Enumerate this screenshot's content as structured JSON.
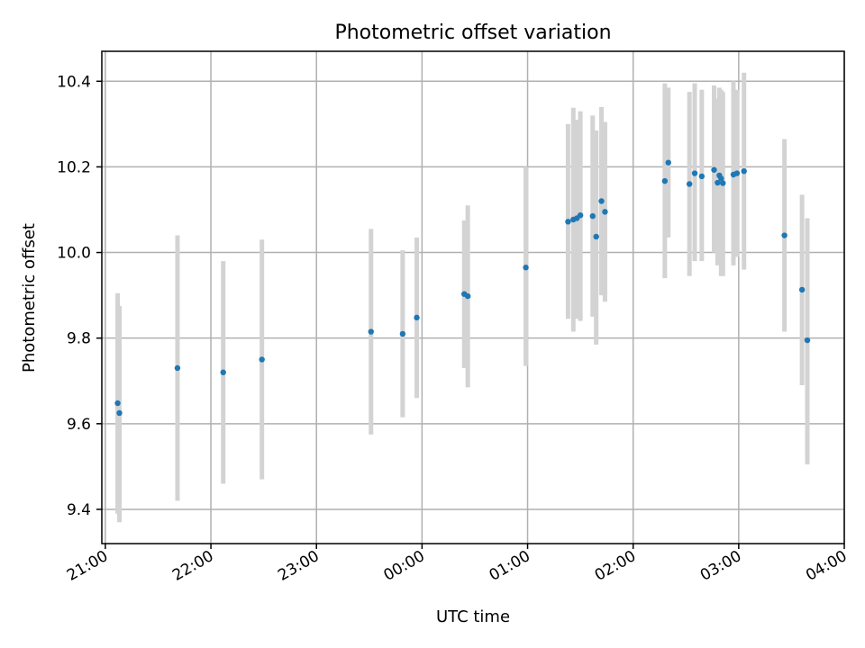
{
  "chart_data": {
    "type": "scatter",
    "title": "Photometric offset variation",
    "xlabel": "UTC time",
    "ylabel": "Photometric offset",
    "x_unit": "UTC time of day (HH:MM), axis spans 21:00 to 04:00 of the following day",
    "xlim": [
      "20:58",
      "04:00"
    ],
    "ylim": [
      9.32,
      10.47
    ],
    "x_ticks": [
      "21:00",
      "22:00",
      "23:00",
      "00:00",
      "01:00",
      "02:00",
      "03:00",
      "04:00"
    ],
    "y_ticks": [
      9.4,
      9.6,
      9.8,
      10.0,
      10.2,
      10.4
    ],
    "y_tick_labels": [
      "9.4",
      "9.6",
      "9.8",
      "10.0",
      "10.2",
      "10.4"
    ],
    "grid": true,
    "marker_color": "#1f77b4",
    "errorbar_color": "#d3d3d3",
    "points": [
      {
        "t": "21:07",
        "y": 9.648,
        "lo": 9.39,
        "hi": 9.905
      },
      {
        "t": "21:08",
        "y": 9.625,
        "lo": 9.37,
        "hi": 9.875
      },
      {
        "t": "21:41",
        "y": 9.73,
        "lo": 9.42,
        "hi": 10.04
      },
      {
        "t": "22:07",
        "y": 9.72,
        "lo": 9.46,
        "hi": 9.98
      },
      {
        "t": "22:29",
        "y": 9.75,
        "lo": 9.47,
        "hi": 10.03
      },
      {
        "t": "23:31",
        "y": 9.815,
        "lo": 9.575,
        "hi": 10.055
      },
      {
        "t": "23:49",
        "y": 9.81,
        "lo": 9.615,
        "hi": 10.005
      },
      {
        "t": "23:57",
        "y": 9.848,
        "lo": 9.66,
        "hi": 10.035
      },
      {
        "t": "00:24",
        "y": 9.903,
        "lo": 9.73,
        "hi": 10.075
      },
      {
        "t": "00:26",
        "y": 9.898,
        "lo": 9.685,
        "hi": 10.11
      },
      {
        "t": "00:59",
        "y": 9.965,
        "lo": 9.735,
        "hi": 10.2
      },
      {
        "t": "01:23",
        "y": 10.072,
        "lo": 9.845,
        "hi": 10.3
      },
      {
        "t": "01:26",
        "y": 10.077,
        "lo": 9.815,
        "hi": 10.338
      },
      {
        "t": "01:28",
        "y": 10.08,
        "lo": 9.845,
        "hi": 10.31
      },
      {
        "t": "01:30",
        "y": 10.087,
        "lo": 9.84,
        "hi": 10.33
      },
      {
        "t": "01:37",
        "y": 10.085,
        "lo": 9.85,
        "hi": 10.32
      },
      {
        "t": "01:39",
        "y": 10.037,
        "lo": 9.785,
        "hi": 10.285
      },
      {
        "t": "01:42",
        "y": 10.12,
        "lo": 9.9,
        "hi": 10.34
      },
      {
        "t": "01:44",
        "y": 10.095,
        "lo": 9.885,
        "hi": 10.305
      },
      {
        "t": "02:18",
        "y": 10.167,
        "lo": 9.94,
        "hi": 10.395
      },
      {
        "t": "02:20",
        "y": 10.21,
        "lo": 10.035,
        "hi": 10.385
      },
      {
        "t": "02:32",
        "y": 10.16,
        "lo": 9.945,
        "hi": 10.375
      },
      {
        "t": "02:35",
        "y": 10.185,
        "lo": 9.98,
        "hi": 10.395
      },
      {
        "t": "02:39",
        "y": 10.178,
        "lo": 9.98,
        "hi": 10.38
      },
      {
        "t": "02:46",
        "y": 10.193,
        "lo": 10.0,
        "hi": 10.39
      },
      {
        "t": "02:48",
        "y": 10.163,
        "lo": 9.97,
        "hi": 10.36
      },
      {
        "t": "02:49",
        "y": 10.18,
        "lo": 9.975,
        "hi": 10.385
      },
      {
        "t": "02:50",
        "y": 10.173,
        "lo": 9.945,
        "hi": 10.38
      },
      {
        "t": "02:51",
        "y": 10.162,
        "lo": 9.945,
        "hi": 10.375
      },
      {
        "t": "02:57",
        "y": 10.182,
        "lo": 9.97,
        "hi": 10.4
      },
      {
        "t": "02:59",
        "y": 10.185,
        "lo": 9.99,
        "hi": 10.38
      },
      {
        "t": "03:03",
        "y": 10.19,
        "lo": 9.96,
        "hi": 10.42
      },
      {
        "t": "03:26",
        "y": 10.04,
        "lo": 9.815,
        "hi": 10.265
      },
      {
        "t": "03:36",
        "y": 9.913,
        "lo": 9.69,
        "hi": 10.135
      },
      {
        "t": "03:39",
        "y": 9.795,
        "lo": 9.505,
        "hi": 10.08
      }
    ]
  }
}
